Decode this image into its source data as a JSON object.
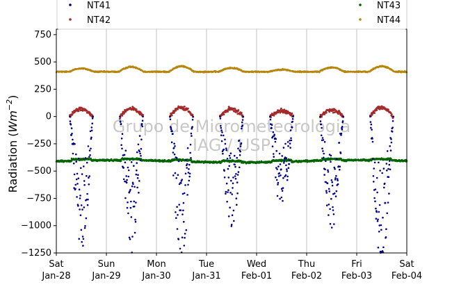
{
  "chart_data": {
    "type": "scatter",
    "ylabel_main": "Radiation (",
    "ylabel_unit": "Wm",
    "ylabel_exp": "−2",
    "ylabel_close": ")",
    "ylim": [
      -1250,
      800
    ],
    "xlim_days": [
      0,
      7
    ],
    "yticks": [
      -1250,
      -1000,
      -750,
      -500,
      -250,
      0,
      250,
      500,
      750
    ],
    "ytick_labels": [
      "−1250",
      "−1000",
      "−750",
      "−500",
      "−250",
      "0",
      "250",
      "500",
      "750"
    ],
    "xticks": [
      {
        "day": "Sat",
        "date": "Jan-28"
      },
      {
        "day": "Sun",
        "date": "Jan-29"
      },
      {
        "day": "Mon",
        "date": "Jan-30"
      },
      {
        "day": "Tue",
        "date": "Jan-31"
      },
      {
        "day": "Wed",
        "date": "Feb-01"
      },
      {
        "day": "Thu",
        "date": "Feb-02"
      },
      {
        "day": "Fri",
        "date": "Feb-03"
      },
      {
        "day": "Sat",
        "date": "Feb-04"
      }
    ],
    "grid": "vertical",
    "legend": "top, two columns",
    "watermark": [
      "Grupo de Micrometeorologia",
      "IAG / USP"
    ],
    "series": [
      {
        "name": "NT41",
        "color": "#00008b",
        "description_peaks": [
          -1130,
          -1160,
          -1230,
          -960,
          -800,
          -990,
          -1250
        ]
      },
      {
        "name": "NT42",
        "color": "#a52a2a",
        "description_peaks": [
          95,
          100,
          110,
          90,
          75,
          80,
          110
        ]
      },
      {
        "name": "NT43",
        "color": "#006400",
        "baseline": -410
      },
      {
        "name": "NT44",
        "color": "#b8860b",
        "baseline": 420,
        "daily_max": [
          450,
          465,
          470,
          455,
          440,
          460,
          470
        ]
      }
    ]
  }
}
